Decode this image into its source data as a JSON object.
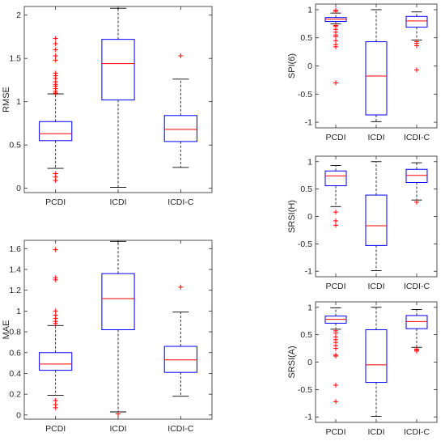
{
  "colors": {
    "box": "#0000FF",
    "median": "#FF0000",
    "whisker": "#000000",
    "outlier": "#FF0000",
    "axes": "#262626"
  },
  "chart_data": [
    {
      "type": "box",
      "ylabel": "RMSE",
      "categories": [
        "PCDI",
        "ICDI",
        "ICDI-C"
      ],
      "ylim": [
        -0.05,
        2.1
      ],
      "yticks": [
        0,
        0.5,
        1,
        1.5,
        2
      ],
      "ytick_labels": [
        "0",
        "0.5",
        "1",
        "1.5",
        "2"
      ],
      "boxes": [
        {
          "category": "PCDI",
          "whisker_low": 0.23,
          "q1": 0.55,
          "median": 0.63,
          "q3": 0.77,
          "whisker_high": 1.09,
          "outliers": [
            0.09,
            0.13,
            0.17,
            1.1,
            1.12,
            1.15,
            1.18,
            1.2,
            1.23,
            1.27,
            1.3,
            1.33,
            1.48,
            1.53,
            1.6,
            1.67,
            1.73
          ]
        },
        {
          "category": "ICDI",
          "whisker_low": 0.01,
          "q1": 1.02,
          "median": 1.44,
          "q3": 1.72,
          "whisker_high": 2.08,
          "outliers": []
        },
        {
          "category": "ICDI-C",
          "whisker_low": 0.24,
          "q1": 0.54,
          "median": 0.68,
          "q3": 0.84,
          "whisker_high": 1.26,
          "outliers": [
            1.53
          ]
        }
      ]
    },
    {
      "type": "box",
      "ylabel": "MAE",
      "categories": [
        "PCDI",
        "ICDI",
        "ICDI-C"
      ],
      "ylim": [
        -0.04,
        1.68
      ],
      "yticks": [
        0,
        0.2,
        0.4,
        0.6,
        0.8,
        1,
        1.2,
        1.4,
        1.6
      ],
      "ytick_labels": [
        "0",
        "0.2",
        "0.4",
        "0.6",
        "0.8",
        "1",
        "1.2",
        "1.4",
        "1.6"
      ],
      "boxes": [
        {
          "category": "PCDI",
          "whisker_low": 0.19,
          "q1": 0.43,
          "median": 0.49,
          "q3": 0.6,
          "whisker_high": 0.86,
          "outliers": [
            0.07,
            0.1,
            0.14,
            0.88,
            0.9,
            0.93,
            0.96,
            1.0,
            1.3,
            1.32,
            1.59
          ]
        },
        {
          "category": "ICDI",
          "whisker_low": 0.03,
          "q1": 0.82,
          "median": 1.12,
          "q3": 1.36,
          "whisker_high": 1.67,
          "outliers": [
            0.01
          ]
        },
        {
          "category": "ICDI-C",
          "whisker_low": 0.18,
          "q1": 0.41,
          "median": 0.53,
          "q3": 0.66,
          "whisker_high": 0.99,
          "outliers": [
            1.23
          ]
        }
      ]
    },
    {
      "type": "box",
      "ylabel": "SPI(6)",
      "categories": [
        "PCDI",
        "ICDI",
        "ICDI-C"
      ],
      "ylim": [
        -1.1,
        1.1
      ],
      "yticks": [
        -1,
        -0.5,
        0,
        0.5,
        1
      ],
      "ytick_labels": [
        "-1",
        "-0.5",
        "0",
        "0.5",
        "1"
      ],
      "boxes": [
        {
          "category": "PCDI",
          "whisker_low": 0.75,
          "q1": 0.79,
          "median": 0.83,
          "q3": 0.86,
          "whisker_high": 0.94,
          "outliers": [
            -0.3,
            0.34,
            0.38,
            0.45,
            0.52,
            0.55,
            0.6,
            0.65,
            0.7,
            0.72,
            0.97,
            0.99
          ]
        },
        {
          "category": "ICDI",
          "whisker_low": -0.99,
          "q1": -0.87,
          "median": -0.18,
          "q3": 0.43,
          "whisker_high": 1.0,
          "outliers": []
        },
        {
          "category": "ICDI-C",
          "whisker_low": 0.46,
          "q1": 0.69,
          "median": 0.8,
          "q3": 0.88,
          "whisker_high": 0.96,
          "outliers": [
            -0.07,
            0.36,
            0.4,
            0.43
          ]
        }
      ]
    },
    {
      "type": "box",
      "ylabel": "SRSI(H)",
      "categories": [
        "PCDI",
        "ICDI",
        "ICDI-C"
      ],
      "ylim": [
        -1.1,
        1.1
      ],
      "yticks": [
        -1,
        -0.5,
        0,
        0.5,
        1
      ],
      "ytick_labels": [
        "-1",
        "-0.5",
        "0",
        "0.5",
        "1"
      ],
      "boxes": [
        {
          "category": "PCDI",
          "whisker_low": 0.18,
          "q1": 0.56,
          "median": 0.74,
          "q3": 0.83,
          "whisker_high": 0.93,
          "outliers": [
            -0.16,
            -0.08,
            0.08
          ]
        },
        {
          "category": "ICDI",
          "whisker_low": -0.99,
          "q1": -0.53,
          "median": -0.17,
          "q3": 0.39,
          "whisker_high": 1.0,
          "outliers": []
        },
        {
          "category": "ICDI-C",
          "whisker_low": 0.3,
          "q1": 0.62,
          "median": 0.75,
          "q3": 0.86,
          "whisker_high": 0.98,
          "outliers": [
            0.26
          ]
        }
      ]
    },
    {
      "type": "box",
      "ylabel": "SRSI(A)",
      "categories": [
        "PCDI",
        "ICDI",
        "ICDI-C"
      ],
      "ylim": [
        -1.1,
        1.1
      ],
      "yticks": [
        -1,
        -0.5,
        0,
        0.5,
        1
      ],
      "ytick_labels": [
        "-1",
        "-0.5",
        "0",
        "0.5",
        "1"
      ],
      "boxes": [
        {
          "category": "PCDI",
          "whisker_low": 0.6,
          "q1": 0.71,
          "median": 0.78,
          "q3": 0.84,
          "whisker_high": 0.99,
          "outliers": [
            -0.72,
            -0.42,
            0.11,
            0.13,
            0.25,
            0.3,
            0.36,
            0.41,
            0.46,
            0.53,
            0.57
          ]
        },
        {
          "category": "ICDI",
          "whisker_low": -0.99,
          "q1": -0.37,
          "median": -0.05,
          "q3": 0.59,
          "whisker_high": 1.0,
          "outliers": []
        },
        {
          "category": "ICDI-C",
          "whisker_low": 0.27,
          "q1": 0.61,
          "median": 0.74,
          "q3": 0.85,
          "whisker_high": 0.96,
          "outliers": [
            0.2,
            0.22,
            0.24
          ]
        }
      ]
    }
  ]
}
